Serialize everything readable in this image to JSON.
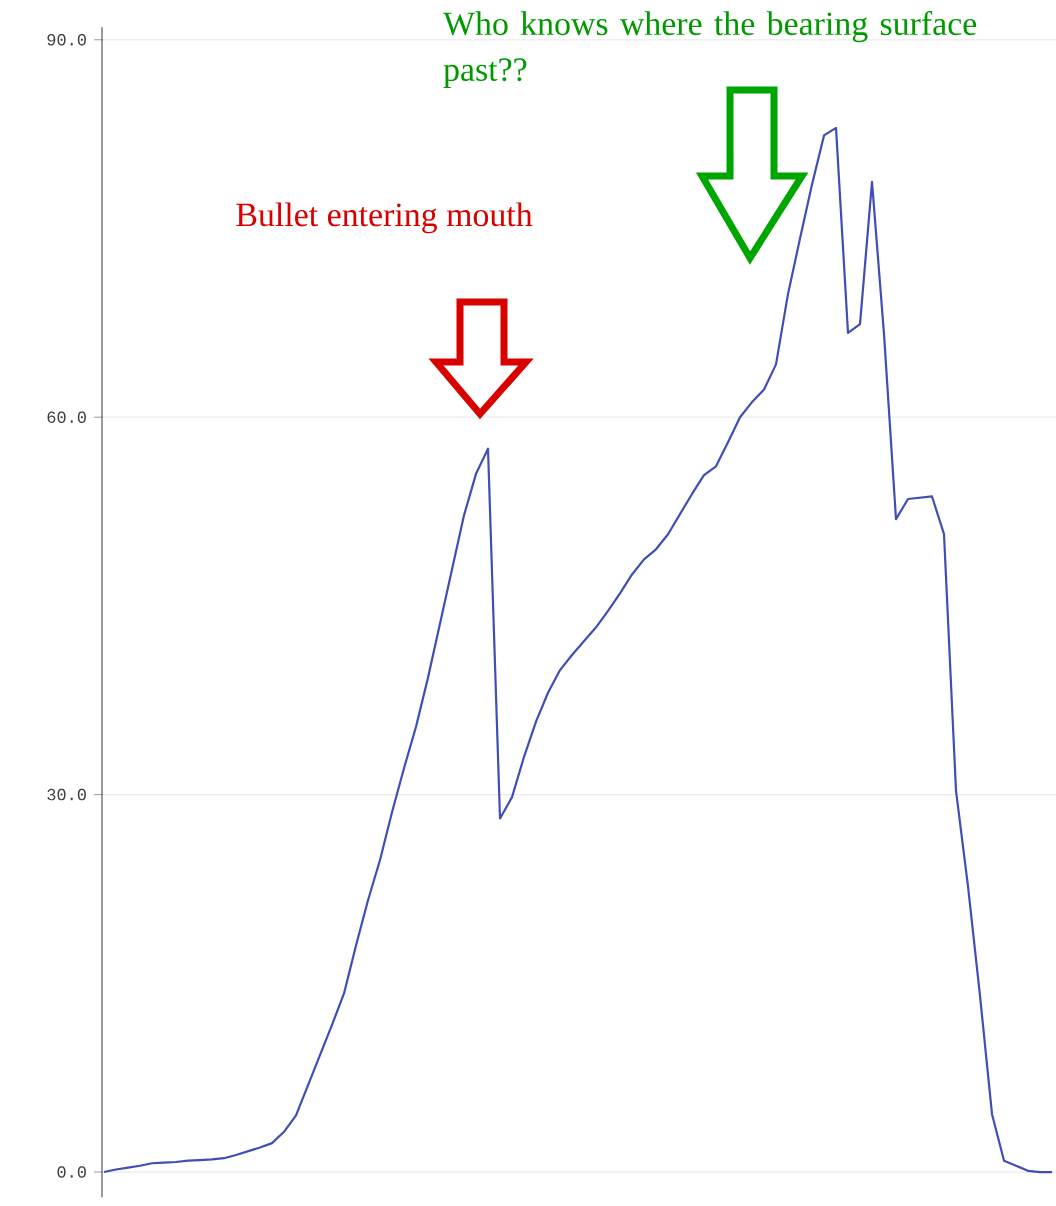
{
  "chart_data": {
    "type": "line",
    "annotations": [
      "Bullet entering mouth",
      "Who knows where the bearing surface past??"
    ],
    "categories": [
      null,
      null,
      null,
      null,
      null,
      null,
      null,
      null,
      null,
      null,
      null,
      null,
      null,
      null,
      null,
      null,
      null,
      null,
      null,
      null,
      null,
      null,
      null,
      null,
      null,
      null,
      null,
      null,
      null,
      null,
      null,
      null,
      null,
      null,
      null,
      null,
      null,
      null,
      null,
      null,
      null,
      null,
      null,
      null,
      null,
      null,
      null,
      null,
      null,
      null,
      null,
      null,
      null,
      null,
      null,
      null,
      null,
      null,
      null,
      null,
      null,
      null,
      null,
      null,
      null,
      null,
      null,
      null,
      null,
      null,
      null,
      null,
      null,
      null,
      null,
      null,
      null,
      null,
      null,
      null
    ],
    "series": [
      {
        "color": "#3f4fb5",
        "values": [
          0.0,
          0.2,
          0.35,
          0.5,
          0.7,
          0.75,
          0.8,
          0.9,
          0.95,
          1.0,
          1.1,
          1.35,
          1.65,
          1.95,
          2.3,
          3.2,
          4.5,
          6.9,
          9.3,
          11.7,
          14.2,
          18.0,
          21.6,
          24.8,
          28.6,
          32.1,
          35.4,
          39.3,
          43.6,
          47.9,
          52.2,
          55.5,
          57.5,
          28.1,
          29.8,
          33.0,
          35.8,
          38.1,
          39.9,
          41.1,
          42.2,
          43.3,
          44.6,
          46.0,
          47.5,
          48.7,
          49.5,
          50.7,
          52.3,
          53.9,
          55.4,
          56.1,
          58.0,
          60.0,
          61.2,
          62.2,
          64.2,
          69.8,
          74.2,
          78.5,
          82.4,
          83.0,
          66.7,
          67.4,
          78.7,
          66.6,
          51.9,
          53.5,
          53.6,
          53.7,
          50.7,
          30.3,
          22.7,
          14.0,
          4.6,
          0.9,
          0.5,
          0.1,
          0.0,
          0.0
        ]
      }
    ],
    "ylim": [
      -2,
      91
    ],
    "yticks": [
      {
        "value": 0,
        "label": "0.0"
      },
      {
        "value": 30,
        "label": "30.0"
      },
      {
        "value": 60,
        "label": "60.0"
      },
      {
        "value": 90,
        "label": "90.0"
      }
    ],
    "grid": "y",
    "tick_labels": "y"
  }
}
